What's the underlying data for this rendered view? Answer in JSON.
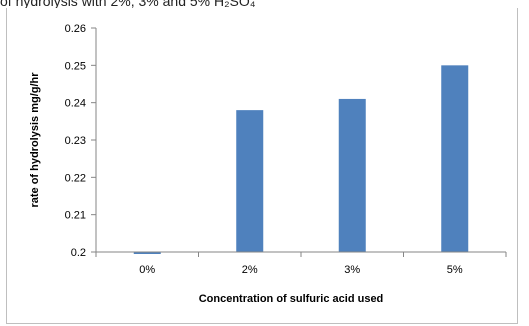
{
  "caption": "of hydrolysis with 2%, 3% and 5% H₂SO₄",
  "colors": {
    "bar": "#4f81bd",
    "axis": "#868686"
  },
  "chart_data": {
    "type": "bar",
    "title": "",
    "xlabel": "Concentration of sulfuric acid used",
    "ylabel": "rate of hydrolysis mg/g/hr",
    "categories": [
      "0%",
      "2%",
      "3%",
      "5%"
    ],
    "values": [
      0.1998,
      0.238,
      0.241,
      0.25
    ],
    "ylim": [
      0.2,
      0.26
    ],
    "yticks": [
      "0.2",
      "0.21",
      "0.22",
      "0.23",
      "0.24",
      "0.25",
      "0.26"
    ],
    "grid": false,
    "legend": "none"
  }
}
